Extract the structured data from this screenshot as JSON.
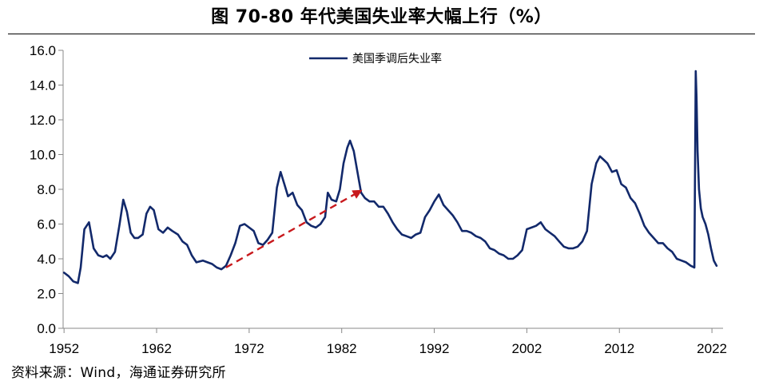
{
  "title": "图 70-80 年代美国失业率大幅上行（%）",
  "source": "资料来源：Wind，海通证券研究所",
  "colors": {
    "series": "#12296b",
    "arrow": "#c8191d",
    "axis": "#888888"
  },
  "chart_data": {
    "type": "line",
    "title": "图 70-80 年代美国失业率大幅上行（%）",
    "xlabel": "",
    "ylabel": "",
    "ylim": [
      0,
      16
    ],
    "yticks": [
      0.0,
      2.0,
      4.0,
      6.0,
      8.0,
      10.0,
      12.0,
      14.0,
      16.0
    ],
    "xlim": [
      1951.9,
      2023.2
    ],
    "xticks": [
      1952,
      1962,
      1972,
      1982,
      1992,
      2002,
      2012,
      2022
    ],
    "grid": false,
    "legend": "top-center",
    "series": [
      {
        "name": "美国季调后失业率",
        "x": [
          1952.0,
          1952.5,
          1953.0,
          1953.5,
          1953.8,
          1954.2,
          1954.7,
          1955.2,
          1955.7,
          1956.2,
          1956.6,
          1957.0,
          1957.5,
          1958.0,
          1958.4,
          1958.8,
          1959.2,
          1959.6,
          1960.0,
          1960.5,
          1960.9,
          1961.3,
          1961.7,
          1962.2,
          1962.7,
          1963.2,
          1963.7,
          1964.3,
          1964.8,
          1965.3,
          1965.8,
          1966.3,
          1967.0,
          1967.5,
          1968.0,
          1968.5,
          1969.0,
          1969.5,
          1970.0,
          1970.5,
          1971.0,
          1971.5,
          1972.0,
          1972.5,
          1973.0,
          1973.5,
          1974.0,
          1974.5,
          1975.0,
          1975.4,
          1975.8,
          1976.2,
          1976.7,
          1977.2,
          1977.7,
          1978.2,
          1978.7,
          1979.2,
          1979.7,
          1980.2,
          1980.5,
          1980.9,
          1981.4,
          1981.8,
          1982.2,
          1982.6,
          1982.9,
          1983.3,
          1983.7,
          1984.1,
          1984.5,
          1985.0,
          1985.5,
          1986.0,
          1986.5,
          1987.0,
          1987.5,
          1988.0,
          1988.5,
          1989.0,
          1989.5,
          1990.0,
          1990.5,
          1991.0,
          1991.5,
          1992.0,
          1992.5,
          1993.0,
          1993.5,
          1994.0,
          1994.5,
          1995.0,
          1995.5,
          1996.0,
          1996.5,
          1997.0,
          1997.5,
          1998.0,
          1998.5,
          1999.0,
          1999.5,
          2000.0,
          2000.5,
          2001.0,
          2001.5,
          2002.0,
          2002.5,
          2003.0,
          2003.5,
          2004.0,
          2004.5,
          2005.0,
          2005.5,
          2006.0,
          2006.5,
          2007.0,
          2007.5,
          2008.0,
          2008.5,
          2009.0,
          2009.5,
          2009.9,
          2010.3,
          2010.7,
          2011.2,
          2011.7,
          2012.2,
          2012.7,
          2013.2,
          2013.7,
          2014.2,
          2014.7,
          2015.2,
          2015.7,
          2016.2,
          2016.7,
          2017.2,
          2017.7,
          2018.2,
          2018.7,
          2019.2,
          2019.7,
          2020.1,
          2020.25,
          2020.33,
          2020.45,
          2020.6,
          2020.8,
          2021.0,
          2021.3,
          2021.6,
          2021.9,
          2022.2,
          2022.5
        ],
        "values": [
          3.2,
          3.0,
          2.7,
          2.6,
          3.5,
          5.7,
          6.1,
          4.6,
          4.2,
          4.1,
          4.2,
          4.0,
          4.4,
          6.0,
          7.4,
          6.7,
          5.5,
          5.2,
          5.2,
          5.4,
          6.6,
          7.0,
          6.8,
          5.7,
          5.5,
          5.8,
          5.6,
          5.4,
          5.0,
          4.8,
          4.2,
          3.8,
          3.9,
          3.8,
          3.7,
          3.5,
          3.4,
          3.6,
          4.2,
          4.9,
          5.9,
          6.0,
          5.8,
          5.6,
          4.9,
          4.8,
          5.1,
          5.5,
          8.1,
          9.0,
          8.3,
          7.6,
          7.8,
          7.1,
          6.8,
          6.1,
          5.9,
          5.8,
          6.0,
          6.4,
          7.8,
          7.4,
          7.3,
          8.0,
          9.5,
          10.4,
          10.8,
          10.2,
          9.0,
          7.8,
          7.5,
          7.3,
          7.3,
          7.0,
          7.0,
          6.6,
          6.1,
          5.7,
          5.4,
          5.3,
          5.2,
          5.4,
          5.5,
          6.4,
          6.8,
          7.3,
          7.7,
          7.1,
          6.8,
          6.5,
          6.1,
          5.6,
          5.6,
          5.5,
          5.3,
          5.2,
          5.0,
          4.6,
          4.5,
          4.3,
          4.2,
          4.0,
          4.0,
          4.2,
          4.5,
          5.7,
          5.8,
          5.9,
          6.1,
          5.7,
          5.5,
          5.3,
          5.0,
          4.7,
          4.6,
          4.6,
          4.7,
          5.0,
          5.6,
          8.3,
          9.5,
          9.9,
          9.7,
          9.5,
          9.0,
          9.1,
          8.3,
          8.1,
          7.5,
          7.2,
          6.6,
          5.9,
          5.5,
          5.2,
          4.9,
          4.9,
          4.6,
          4.4,
          4.0,
          3.9,
          3.8,
          3.6,
          3.5,
          14.8,
          13.3,
          10.2,
          8.0,
          6.9,
          6.4,
          6.0,
          5.4,
          4.6,
          3.9,
          3.6
        ]
      }
    ],
    "annotations": [
      {
        "type": "arrow",
        "from": {
          "x": 1969.5,
          "y": 3.5
        },
        "to": {
          "x": 1984.0,
          "y": 7.9
        }
      }
    ]
  }
}
